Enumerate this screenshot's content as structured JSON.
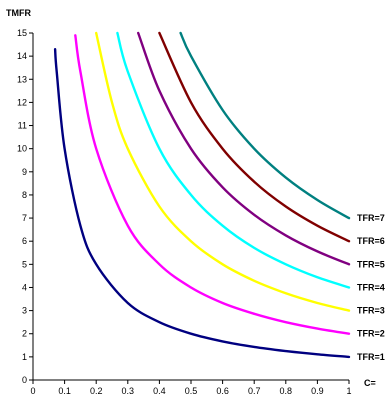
{
  "chart_data": {
    "type": "line",
    "title": "",
    "xlabel": "C=",
    "ylabel": "TMFR",
    "xlim": [
      0,
      1
    ],
    "ylim": [
      0,
      15
    ],
    "x_ticks": [
      "0",
      "0.1",
      "0.2",
      "0.3",
      "0.4",
      "0.5",
      "0.6",
      "0.7",
      "0.8",
      "0.9",
      "1"
    ],
    "y_ticks": [
      "0",
      "1",
      "2",
      "3",
      "4",
      "5",
      "6",
      "7",
      "8",
      "9",
      "10",
      "11",
      "12",
      "13",
      "14",
      "15"
    ],
    "grid": false,
    "legend": "none",
    "series": [
      {
        "name": "TFR=1",
        "color": "#000080",
        "x": [
          0.07,
          0.075,
          0.1,
          0.15,
          0.2,
          0.3,
          0.4,
          0.5,
          0.6,
          0.7,
          0.8,
          0.9,
          1.0
        ],
        "y": [
          14.3,
          13.33,
          10.0,
          6.67,
          5.0,
          3.33,
          2.5,
          2.0,
          1.67,
          1.43,
          1.25,
          1.11,
          1.0
        ]
      },
      {
        "name": "TFR=2",
        "color": "#FF00FF",
        "x": [
          0.134,
          0.15,
          0.2,
          0.3,
          0.4,
          0.5,
          0.6,
          0.7,
          0.8,
          0.9,
          1.0
        ],
        "y": [
          14.9,
          13.33,
          10.0,
          6.67,
          5.0,
          4.0,
          3.33,
          2.86,
          2.5,
          2.22,
          2.0
        ]
      },
      {
        "name": "TFR=3",
        "color": "#FFFF00",
        "x": [
          0.2,
          0.25,
          0.3,
          0.4,
          0.5,
          0.6,
          0.7,
          0.8,
          0.9,
          1.0
        ],
        "y": [
          15.0,
          12.0,
          10.0,
          7.5,
          6.0,
          5.0,
          4.29,
          3.75,
          3.33,
          3.0
        ]
      },
      {
        "name": "TFR=4",
        "color": "#00FFFF",
        "x": [
          0.267,
          0.3,
          0.4,
          0.5,
          0.6,
          0.7,
          0.8,
          0.9,
          1.0
        ],
        "y": [
          15.0,
          13.33,
          10.0,
          8.0,
          6.67,
          5.71,
          5.0,
          4.44,
          4.0
        ]
      },
      {
        "name": "TFR=5",
        "color": "#800080",
        "x": [
          0.333,
          0.4,
          0.5,
          0.6,
          0.7,
          0.8,
          0.9,
          1.0
        ],
        "y": [
          15.0,
          12.5,
          10.0,
          8.33,
          7.14,
          6.25,
          5.56,
          5.0
        ]
      },
      {
        "name": "TFR=6",
        "color": "#800000",
        "x": [
          0.4,
          0.5,
          0.6,
          0.7,
          0.8,
          0.9,
          1.0
        ],
        "y": [
          15.0,
          12.0,
          10.0,
          8.57,
          7.5,
          6.67,
          6.0
        ]
      },
      {
        "name": "TFR=7",
        "color": "#008080",
        "x": [
          0.467,
          0.5,
          0.6,
          0.7,
          0.8,
          0.9,
          1.0
        ],
        "y": [
          15.0,
          14.0,
          11.67,
          10.0,
          8.75,
          7.78,
          7.0
        ]
      }
    ]
  }
}
